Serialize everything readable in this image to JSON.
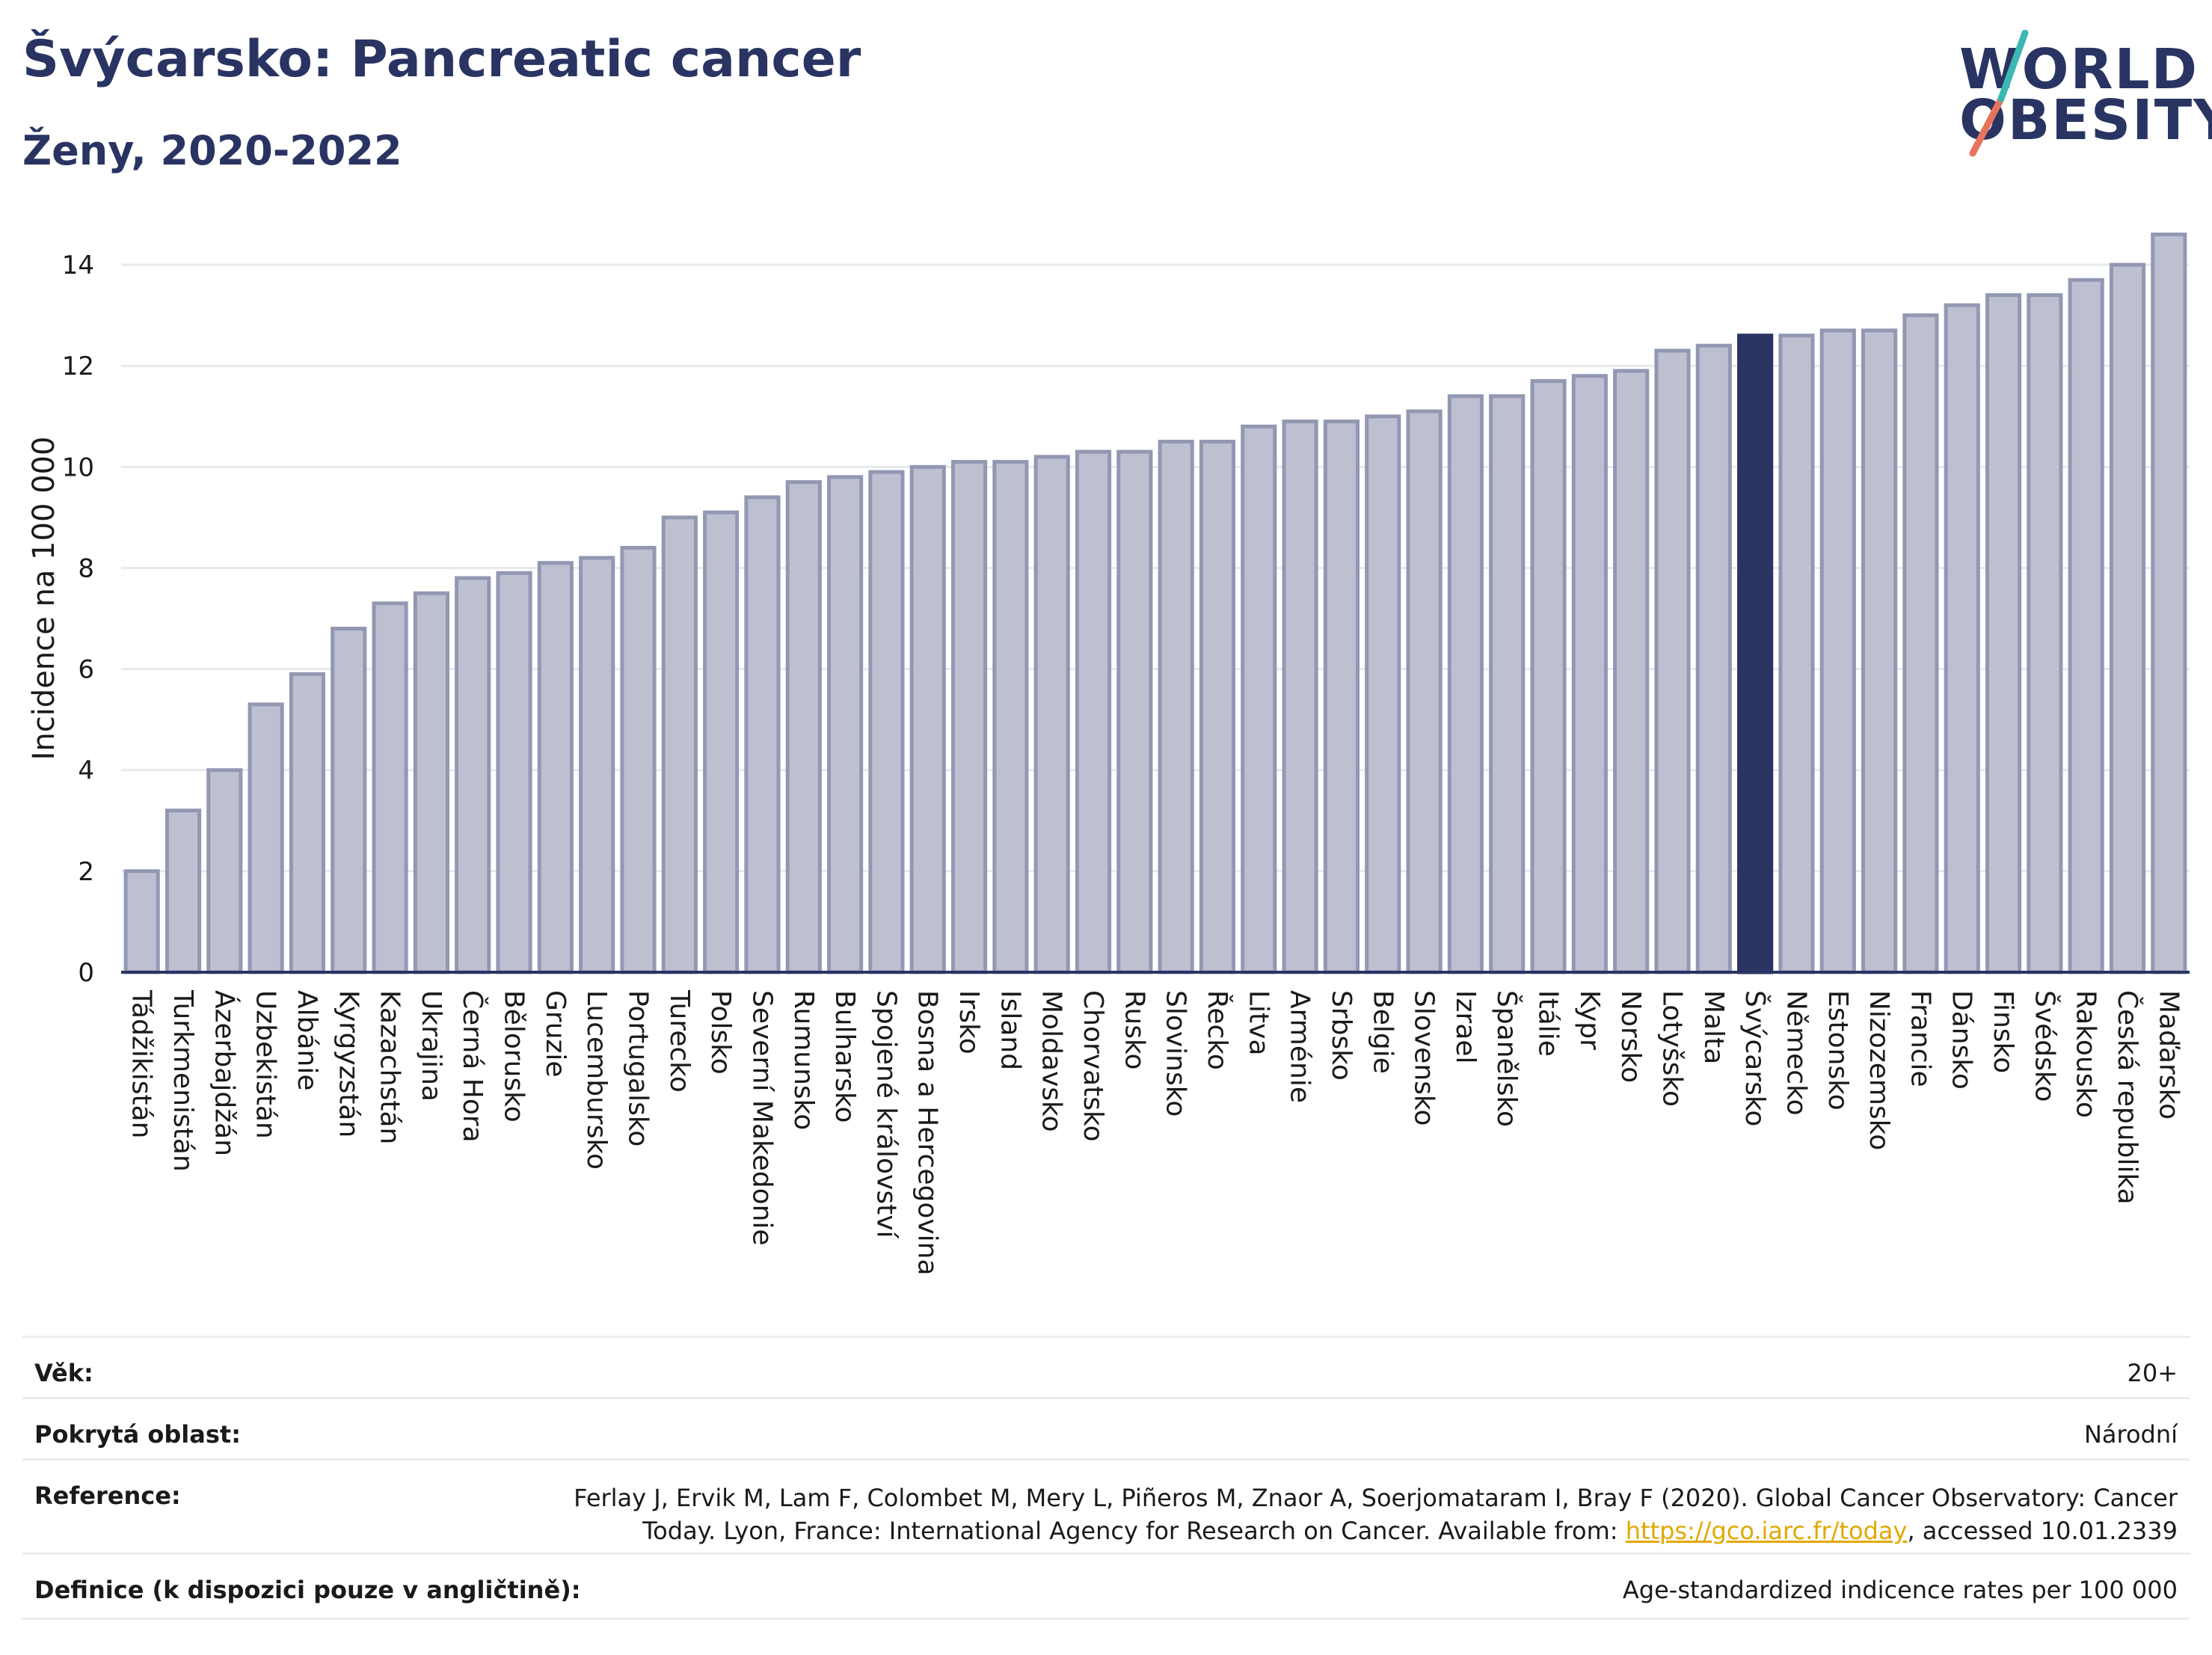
{
  "header": {
    "title": "Švýcarsko: Pancreatic cancer",
    "subtitle": "Ženy, 2020-2022"
  },
  "logo": {
    "line1": "WORLD",
    "line2": "OBESITY",
    "accent_color": "#e5735e",
    "accent2_color": "#3cb8b2"
  },
  "colors": {
    "bar": "#bcc0d0",
    "bar_edge": "#9398b2",
    "highlight": "#2a3462",
    "grid": "#e6e9ee",
    "axis": "#2a3462"
  },
  "chart_data": {
    "type": "bar",
    "ylabel": "Incidence na 100 000",
    "xlabel": "",
    "ylim": [
      0,
      14.8
    ],
    "yticks": [
      0,
      2,
      4,
      6,
      8,
      10,
      12,
      14
    ],
    "grid": true,
    "highlight": "Švýcarsko",
    "categories": [
      "Tádžikistán",
      "Turkmenistán",
      "Ázerbajdžán",
      "Uzbekistán",
      "Albánie",
      "Kyrgyzstán",
      "Kazachstán",
      "Ukrajina",
      "Černá Hora",
      "Bělorusko",
      "Gruzie",
      "Lucembursko",
      "Portugalsko",
      "Turecko",
      "Polsko",
      "Severní Makedonie",
      "Rumunsko",
      "Bulharsko",
      "Spojené království",
      "Bosna a Hercegovina",
      "Irsko",
      "Island",
      "Moldavsko",
      "Chorvatsko",
      "Rusko",
      "Slovinsko",
      "Řecko",
      "Litva",
      "Arménie",
      "Srbsko",
      "Belgie",
      "Slovensko",
      "Izrael",
      "Španělsko",
      "Itálie",
      "Kypr",
      "Norsko",
      "Lotyšsko",
      "Malta",
      "Švýcarsko",
      "Německo",
      "Estonsko",
      "Nizozemsko",
      "Francie",
      "Dánsko",
      "Finsko",
      "Švédsko",
      "Rakousko",
      "Česká republika",
      "Maďarsko"
    ],
    "values": [
      2.0,
      3.2,
      4.0,
      5.3,
      5.9,
      6.8,
      7.3,
      7.5,
      7.8,
      7.9,
      8.1,
      8.2,
      8.4,
      9.0,
      9.1,
      9.4,
      9.7,
      9.8,
      9.9,
      10.0,
      10.1,
      10.1,
      10.2,
      10.3,
      10.3,
      10.5,
      10.5,
      10.8,
      10.9,
      10.9,
      11.0,
      11.1,
      11.4,
      11.4,
      11.7,
      11.8,
      11.9,
      12.3,
      12.4,
      12.6,
      12.6,
      12.7,
      12.7,
      13.0,
      13.2,
      13.4,
      13.4,
      13.7,
      14.0,
      14.6
    ]
  },
  "meta": {
    "age_label": "Věk:",
    "age_value": "20+",
    "area_label": "Pokrytá oblast:",
    "area_value": "Národní",
    "ref_label": "Reference:",
    "ref_line1": "Ferlay J, Ervik M, Lam F, Colombet M, Mery L, Piñeros M, Znaor A, Soerjomataram I, Bray F (2020). Global Cancer Observatory: Cancer",
    "ref_line2_pre": "Today. Lyon, France: International Agency for Research on Cancer. Available from: ",
    "ref_link": "https://gco.iarc.fr/today",
    "ref_line2_post": ", accessed 10.01.2339",
    "def_label": "Definice (k dispozici pouze v angličtině):",
    "def_value": "Age-standardized indicence rates per 100 000"
  }
}
